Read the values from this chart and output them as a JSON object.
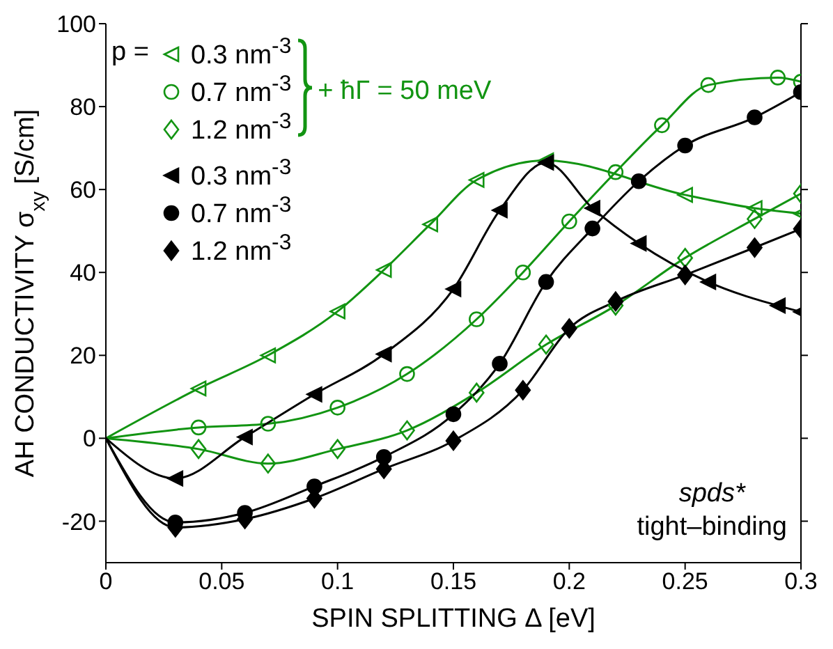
{
  "chart_data": {
    "type": "line",
    "xlabel": "SPIN SPLITTING Δ [eV]",
    "ylabel": "AH CONDUCTIVITY σ$_{xy}$ [S/cm]",
    "xlim": [
      0,
      0.3
    ],
    "xticks": [
      0,
      0.05,
      0.1,
      0.15,
      0.2,
      0.25,
      0.3
    ],
    "ylim": [
      -30,
      100
    ],
    "yticks": [
      -20,
      0,
      20,
      40,
      60,
      80,
      100
    ],
    "grid": false,
    "legend": "top left",
    "line_style": "solid",
    "annotations": [
      "p =",
      "+ ħΓ = 50 meV",
      "spds*",
      "tight–binding"
    ],
    "series": [
      {
        "name": "0.3 nm$^{-3}$",
        "color": "#129412",
        "marker": "triangle",
        "x": [
          0,
          0.04,
          0.07,
          0.1,
          0.12,
          0.14,
          0.16,
          0.19,
          0.25,
          0.28,
          0.3
        ],
        "values": [
          0,
          12,
          20,
          30.6,
          40.6,
          51.6,
          62.3,
          67,
          58.7,
          55.5,
          54.2
        ]
      },
      {
        "name": "0.7 nm$^{-3}$",
        "color": "#129412",
        "marker": "circle",
        "x": [
          0,
          0.04,
          0.07,
          0.1,
          0.13,
          0.16,
          0.18,
          0.2,
          0.22,
          0.24,
          0.26,
          0.29,
          0.3
        ],
        "values": [
          0,
          2.6,
          3.5,
          7.4,
          15.5,
          28.7,
          40,
          52.3,
          64.2,
          75.5,
          85.2,
          87,
          86
        ]
      },
      {
        "name": "1.2 nm$^{-3}$",
        "color": "#129412",
        "marker": "diamond",
        "x": [
          0,
          0.04,
          0.07,
          0.1,
          0.13,
          0.16,
          0.19,
          0.22,
          0.25,
          0.28,
          0.3
        ],
        "values": [
          0,
          -2.6,
          -6.1,
          -2.6,
          1.9,
          11,
          22.6,
          32,
          43.5,
          52.9,
          59
        ]
      },
      {
        "name": "0.3 nm$^{-3}$",
        "color": "#000000",
        "marker": "triangle",
        "x": [
          0,
          0.03,
          0.06,
          0.09,
          0.12,
          0.15,
          0.17,
          0.19,
          0.21,
          0.23,
          0.26,
          0.29,
          0.3
        ],
        "values": [
          0,
          -9.7,
          0.3,
          10.6,
          20.3,
          36,
          55,
          66.5,
          55.5,
          47,
          37.7,
          32,
          30.5
        ]
      },
      {
        "name": "0.7 nm$^{-3}$",
        "color": "#000000",
        "marker": "circle",
        "x": [
          0,
          0.03,
          0.06,
          0.09,
          0.12,
          0.15,
          0.17,
          0.19,
          0.21,
          0.23,
          0.25,
          0.28,
          0.3
        ],
        "values": [
          0,
          -20.3,
          -18,
          -11.6,
          -4.5,
          5.8,
          18,
          37.7,
          50.6,
          62,
          70.6,
          77.4,
          83.5
        ]
      },
      {
        "name": "1.2 nm$^{-3}$",
        "color": "#000000",
        "marker": "diamond",
        "x": [
          0,
          0.03,
          0.06,
          0.09,
          0.12,
          0.15,
          0.18,
          0.2,
          0.22,
          0.25,
          0.28,
          0.3
        ],
        "values": [
          0,
          -21.5,
          -19.5,
          -14.5,
          -7.4,
          -0.6,
          11.6,
          26.5,
          33,
          39.4,
          46,
          50.5
        ]
      }
    ]
  }
}
